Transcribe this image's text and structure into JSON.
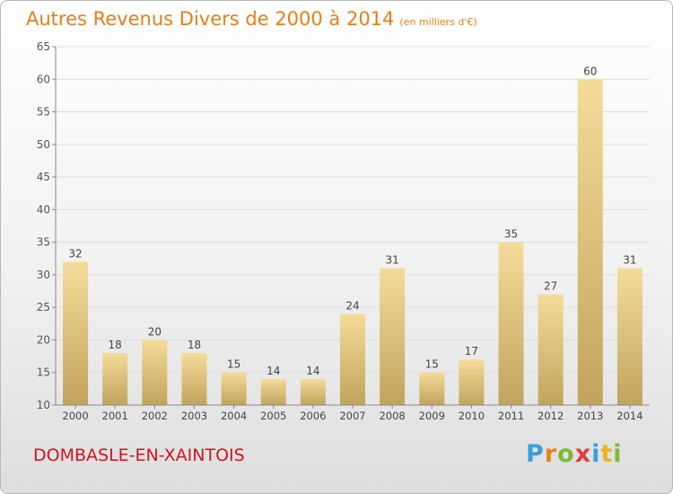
{
  "title": {
    "main": "Autres Revenus Divers de 2000 à 2014",
    "unit": "(en milliers d'€)"
  },
  "location": "DOMBASLE-EN-XAINTOIS",
  "brand": {
    "text": "Proxiti",
    "letter_colors": [
      "#3aa0dc",
      "#e8841b",
      "#7cba3b",
      "#e23b3b",
      "#3aa0dc",
      "#f0b020",
      "#7cba3b"
    ]
  },
  "colors": {
    "title": "#e37f1a",
    "location": "#d0141b",
    "bar_light": "#f4dc9a",
    "bar_dark": "#c2a35d",
    "grid": "#dddddd"
  },
  "chart_data": {
    "type": "bar",
    "categories": [
      "2000",
      "2001",
      "2002",
      "2003",
      "2004",
      "2005",
      "2006",
      "2007",
      "2008",
      "2009",
      "2010",
      "2011",
      "2012",
      "2013",
      "2014"
    ],
    "values": [
      32,
      18,
      20,
      18,
      15,
      14,
      14,
      24,
      31,
      15,
      17,
      35,
      27,
      60,
      31
    ],
    "title": "Autres Revenus Divers de 2000 à 2014",
    "xlabel": "",
    "ylabel": "",
    "ylim": [
      10,
      65
    ],
    "yticks": [
      10,
      15,
      20,
      25,
      30,
      35,
      40,
      45,
      50,
      55,
      60,
      65
    ],
    "grid": "horizontal",
    "data_labels": true
  }
}
